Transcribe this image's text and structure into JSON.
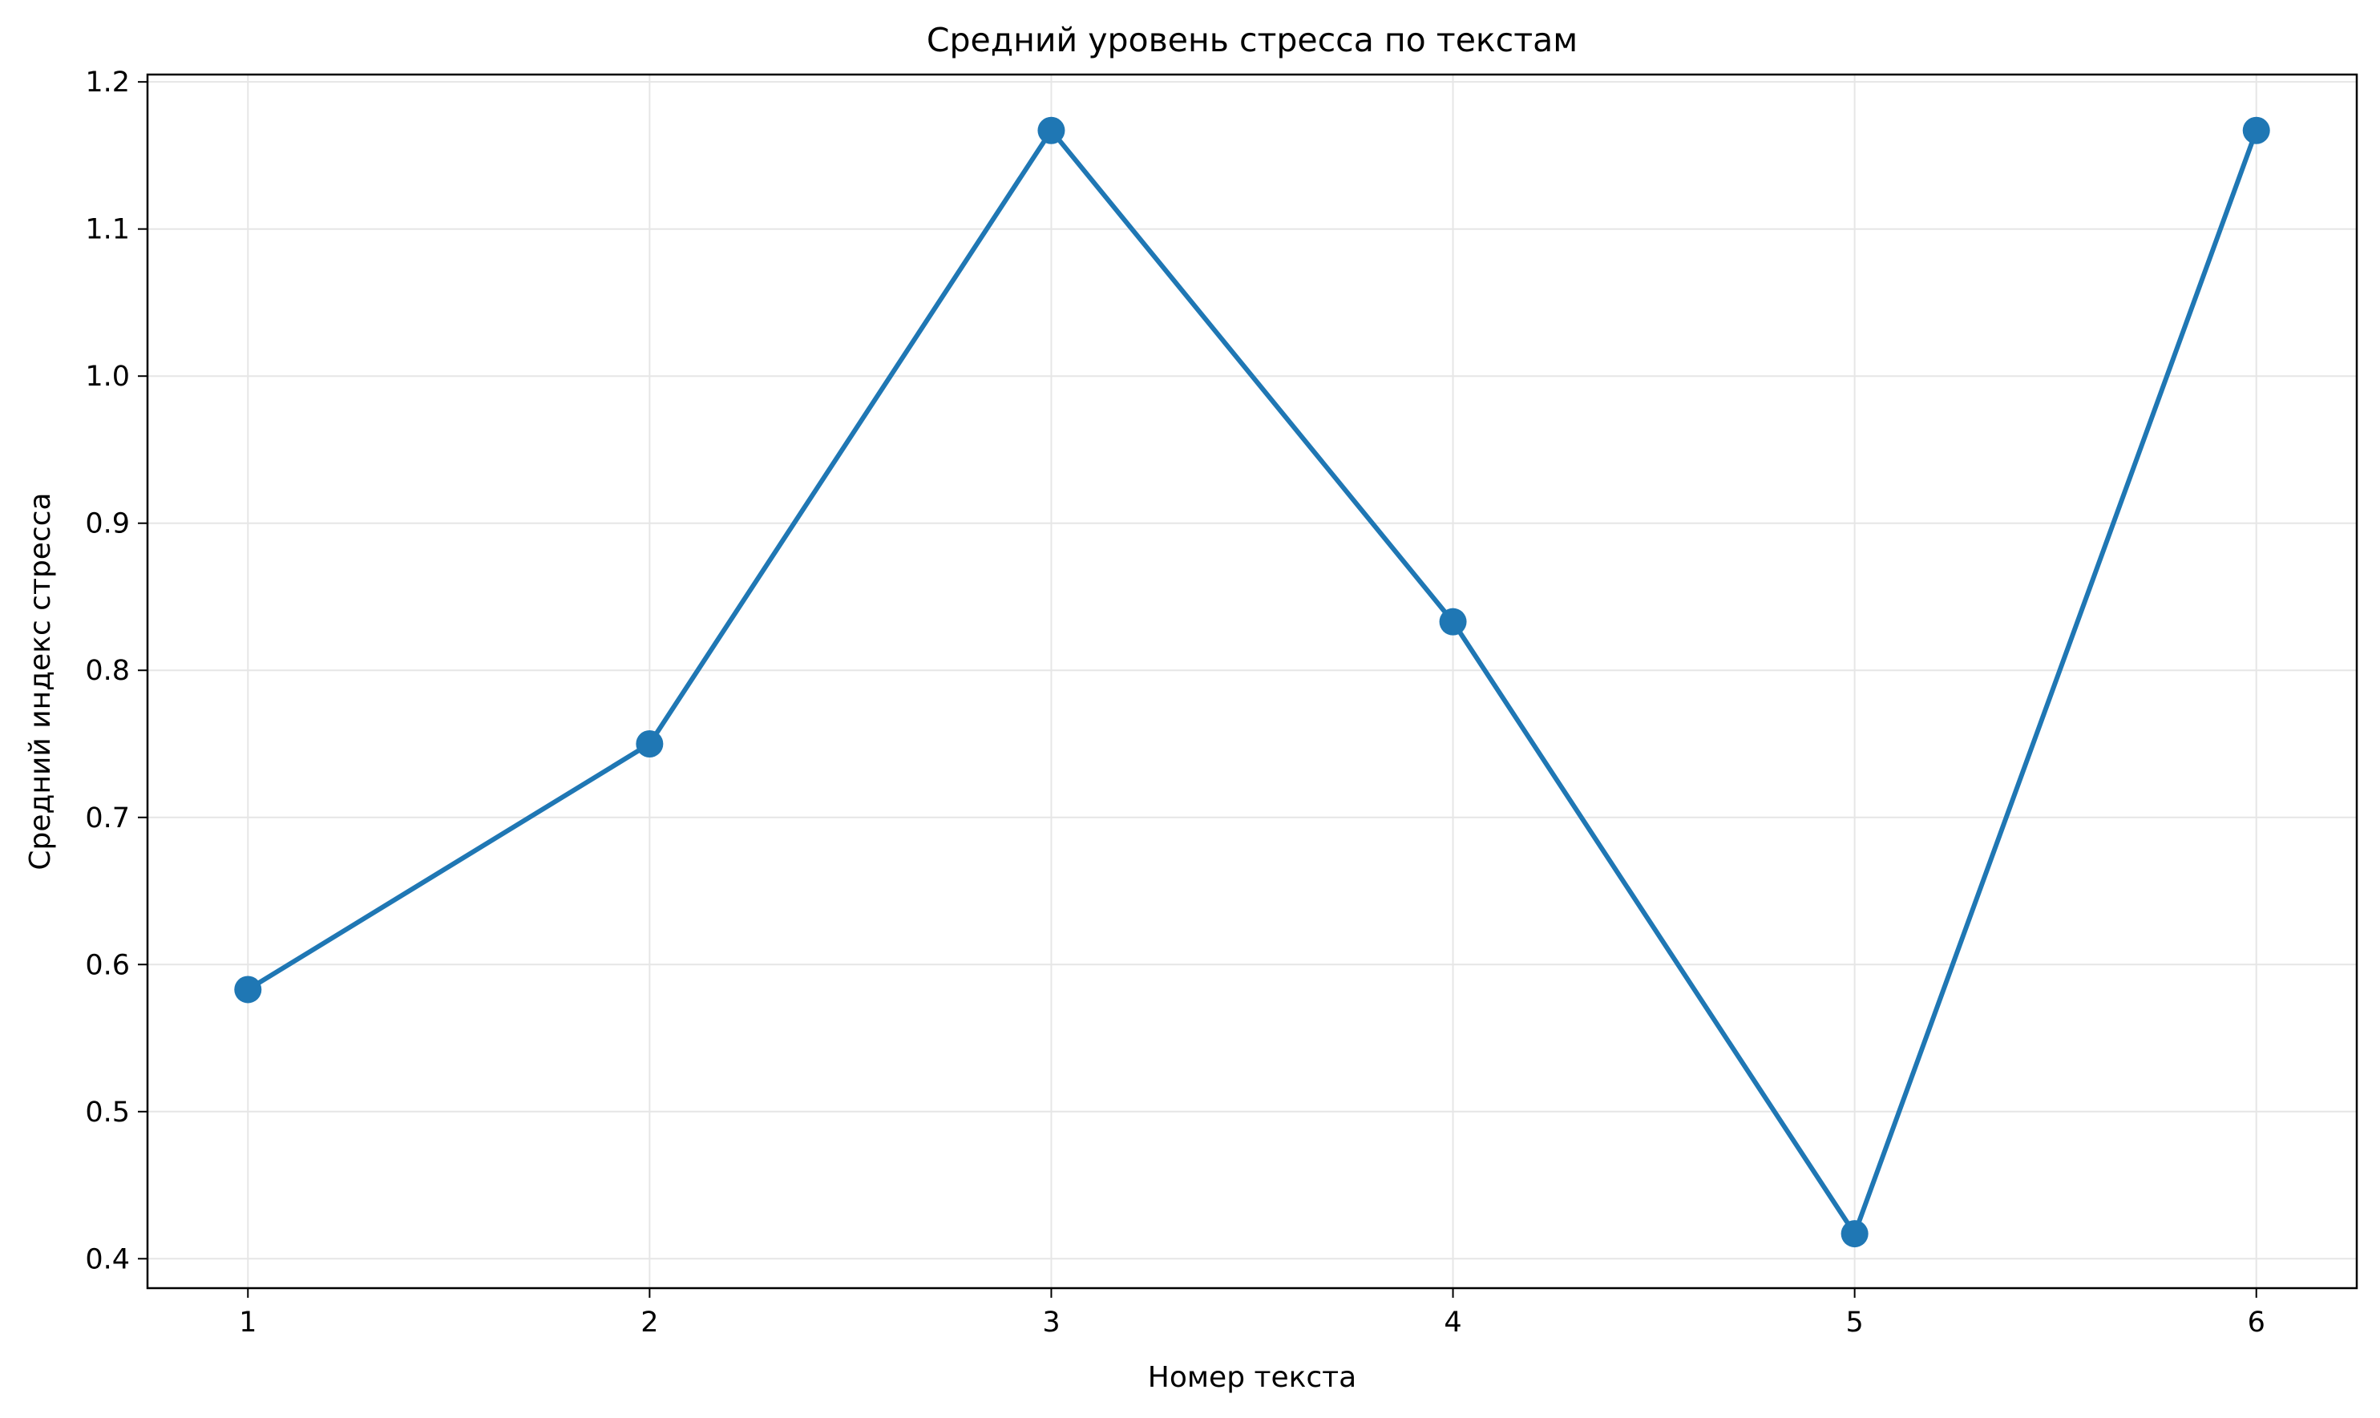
{
  "chart_data": {
    "type": "line",
    "title": "Средний уровень стресса по текстам",
    "xlabel": "Номер текста",
    "ylabel": "Средний индекс стресса",
    "x": [
      1,
      2,
      3,
      4,
      5,
      6
    ],
    "x_tick_labels": [
      "1",
      "2",
      "3",
      "4",
      "5",
      "6"
    ],
    "y_tick_labels": [
      "0.4",
      "0.5",
      "0.6",
      "0.7",
      "0.8",
      "0.9",
      "1.0",
      "1.1",
      "1.2"
    ],
    "y_ticks": [
      0.4,
      0.5,
      0.6,
      0.7,
      0.8,
      0.9,
      1.0,
      1.1,
      1.2
    ],
    "series": [
      {
        "values": [
          0.583,
          0.75,
          1.167,
          0.833,
          0.417,
          1.167
        ],
        "color": "#1f77b4",
        "marker": "circle"
      }
    ],
    "xlim": [
      0.75,
      6.25
    ],
    "ylim": [
      0.38,
      1.205
    ],
    "grid": true,
    "grid_color": "#e6e6e6",
    "legend": "none"
  }
}
